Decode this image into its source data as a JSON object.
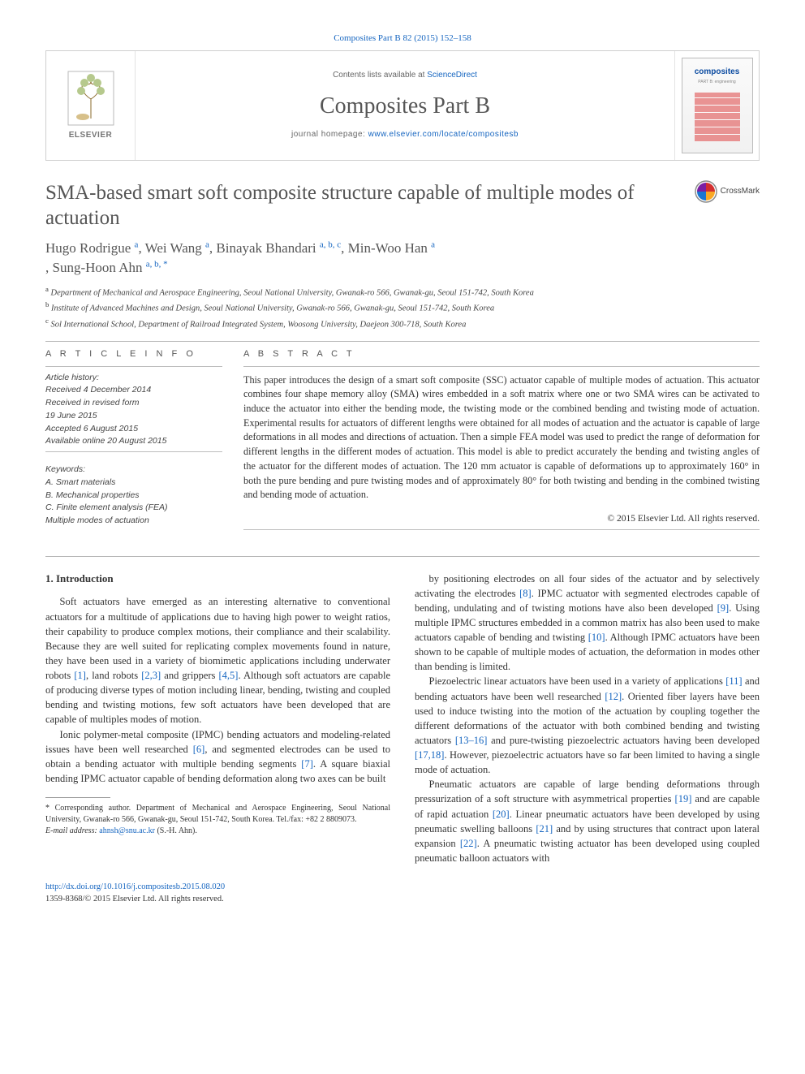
{
  "colors": {
    "link": "#1565c0",
    "text_body": "#333333",
    "text_muted": "#565656",
    "rule": "#b6b6b6",
    "masthead_border": "#cfcfcf",
    "background": "#ffffff"
  },
  "running_header": {
    "journal_ref_link": "Composites Part B 82 (2015) 152–158"
  },
  "masthead": {
    "publisher_logo_name": "ELSEVIER",
    "contents_prefix": "Contents lists available at ",
    "contents_link": "ScienceDirect",
    "journal_name": "Composites Part B",
    "homepage_prefix": "journal homepage: ",
    "homepage_url": "www.elsevier.com/locate/compositesb",
    "cover_word": "composites"
  },
  "article": {
    "title": "SMA-based smart soft composite structure capable of multiple modes of actuation",
    "crossmark_label": "CrossMark",
    "authors_html": [
      {
        "name": "Hugo Rodrigue ",
        "affs": "a"
      },
      {
        "name": ", Wei Wang ",
        "affs": "a"
      },
      {
        "name": ", Binayak Bhandari ",
        "affs": "a, b, c"
      },
      {
        "name": ", Min-Woo Han ",
        "affs": "a"
      },
      {
        "name": ", Sung-Hoon Ahn ",
        "affs": "a, b, *"
      }
    ],
    "affiliations": [
      {
        "sup": "a",
        "text": "Department of Mechanical and Aerospace Engineering, Seoul National University, Gwanak-ro 566, Gwanak-gu, Seoul 151-742, South Korea"
      },
      {
        "sup": "b",
        "text": "Institute of Advanced Machines and Design, Seoul National University, Gwanak-ro 566, Gwanak-gu, Seoul 151-742, South Korea"
      },
      {
        "sup": "c",
        "text": "Sol International School, Department of Railroad Integrated System, Woosong University, Daejeon 300-718, South Korea"
      }
    ]
  },
  "info": {
    "heading": "A R T I C L E   I N F O",
    "history_label": "Article history:",
    "received": "Received 4 December 2014",
    "revised_label": "Received in revised form",
    "revised_date": "19 June 2015",
    "accepted": "Accepted 6 August 2015",
    "online": "Available online 20 August 2015",
    "keywords_label": "Keywords:",
    "keywords": [
      "A. Smart materials",
      "B. Mechanical properties",
      "C. Finite element analysis (FEA)",
      "Multiple modes of actuation"
    ]
  },
  "abstract": {
    "heading": "A B S T R A C T",
    "text": "This paper introduces the design of a smart soft composite (SSC) actuator capable of multiple modes of actuation. This actuator combines four shape memory alloy (SMA) wires embedded in a soft matrix where one or two SMA wires can be activated to induce the actuator into either the bending mode, the twisting mode or the combined bending and twisting mode of actuation. Experimental results for actuators of different lengths were obtained for all modes of actuation and the actuator is capable of large deformations in all modes and directions of actuation. Then a simple FEA model was used to predict the range of deformation for different lengths in the different modes of actuation. This model is able to predict accurately the bending and twisting angles of the actuator for the different modes of actuation. The 120 mm actuator is capable of deformations up to approximately 160° in both the pure bending and pure twisting modes and of approximately 80° for both twisting and bending in the combined twisting and bending mode of actuation.",
    "copyright": "© 2015 Elsevier Ltd. All rights reserved."
  },
  "body": {
    "section_heading": "1. Introduction",
    "left_paras": [
      "Soft actuators have emerged as an interesting alternative to conventional actuators for a multitude of applications due to having high power to weight ratios, their capability to produce complex motions, their compliance and their scalability. Because they are well suited for replicating complex movements found in nature, they have been used in a variety of biomimetic applications including underwater robots [1], land robots [2,3] and grippers [4,5]. Although soft actuators are capable of producing diverse types of motion including linear, bending, twisting and coupled bending and twisting motions, few soft actuators have been developed that are capable of multiples modes of motion.",
      "Ionic polymer-metal composite (IPMC) bending actuators and modeling-related issues have been well researched [6], and segmented electrodes can be used to obtain a bending actuator with multiple bending segments [7]. A square biaxial bending IPMC actuator capable of bending deformation along two axes can be built"
    ],
    "right_paras": [
      "by positioning electrodes on all four sides of the actuator and by selectively activating the electrodes [8]. IPMC actuator with segmented electrodes capable of bending, undulating and of twisting motions have also been developed [9]. Using multiple IPMC structures embedded in a common matrix has also been used to make actuators capable of bending and twisting [10]. Although IPMC actuators have been shown to be capable of multiple modes of actuation, the deformation in modes other than bending is limited.",
      "Piezoelectric linear actuators have been used in a variety of applications [11] and bending actuators have been well researched [12]. Oriented fiber layers have been used to induce twisting into the motion of the actuation by coupling together the different deformations of the actuator with both combined bending and twisting actuators [13–16] and pure-twisting piezoelectric actuators having been developed [17,18]. However, piezoelectric actuators have so far been limited to having a single mode of actuation.",
      "Pneumatic actuators are capable of large bending deformations through pressurization of a soft structure with asymmetrical properties [19] and are capable of rapid actuation [20]. Linear pneumatic actuators have been developed by using pneumatic swelling balloons [21] and by using structures that contract upon lateral expansion [22]. A pneumatic twisting actuator has been developed using coupled pneumatic balloon actuators with"
    ],
    "left_refs": {
      "[1]": 1,
      "[2,3]": 1,
      "[4,5]": 1,
      "[6]": 1,
      "[7]": 1
    },
    "right_refs": {
      "[8]": 1,
      "[9]": 1,
      "[10]": 1,
      "[11]": 1,
      "[12]": 1,
      "[13–16]": 1,
      "[17,18]": 1,
      "[19]": 1,
      "[20]": 1,
      "[21]": 1,
      "[22]": 1
    }
  },
  "footnote": {
    "corr_label": "* Corresponding author. Department of Mechanical and Aerospace Engineering, Seoul National University, Gwanak-ro 566, Gwanak-gu, Seoul 151-742, South Korea. Tel./fax: +82 2 8809073.",
    "email_label": "E-mail address: ",
    "email": "ahnsh@snu.ac.kr",
    "email_suffix": " (S.-H. Ahn)."
  },
  "doi": {
    "url": "http://dx.doi.org/10.1016/j.compositesb.2015.08.020",
    "issn_line": "1359-8368/© 2015 Elsevier Ltd. All rights reserved."
  }
}
